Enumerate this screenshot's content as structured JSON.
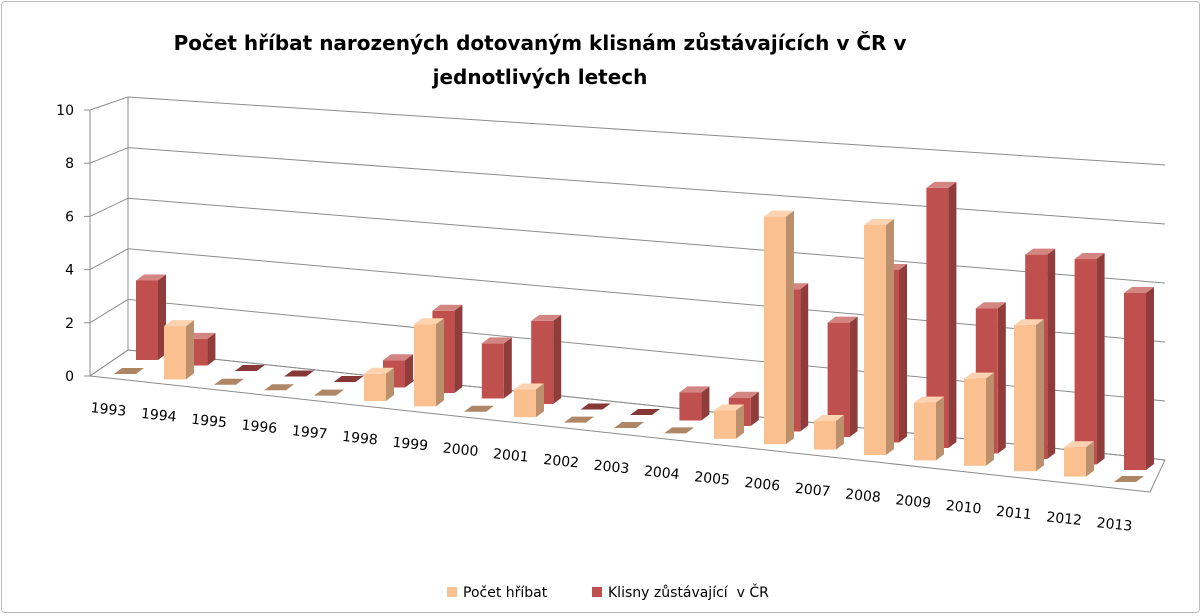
{
  "chart_data": {
    "type": "bar3d",
    "title": "Počet hříbat narozených dotovaným klisnám zůstávajících v ČR v jednotlivých letech",
    "categories": [
      "1993",
      "1994",
      "1995",
      "1996",
      "1997",
      "1998",
      "1999",
      "2000",
      "2001",
      "2002",
      "2003",
      "2004",
      "2005",
      "2006",
      "2007",
      "2008",
      "2009",
      "2010",
      "2011",
      "2012",
      "2013"
    ],
    "series": [
      {
        "name": "Počet hříbat",
        "color": "#FAC090",
        "values": [
          0,
          2,
          0,
          0,
          0,
          1,
          3,
          0,
          1,
          0,
          0,
          0,
          1,
          8,
          1,
          8,
          2,
          3,
          5,
          1,
          0
        ]
      },
      {
        "name": "Klisny zůstávající  v ČR",
        "color": "#C0504D",
        "values": [
          3,
          1,
          0,
          0,
          0,
          1,
          3,
          2,
          3,
          0,
          0,
          1,
          1,
          5,
          4,
          6,
          9,
          5,
          7,
          7,
          6
        ]
      }
    ],
    "ylim": [
      0,
      10
    ],
    "yticks": [
      0,
      2,
      4,
      6,
      8,
      10
    ],
    "grid": true,
    "legend": "bottom"
  }
}
